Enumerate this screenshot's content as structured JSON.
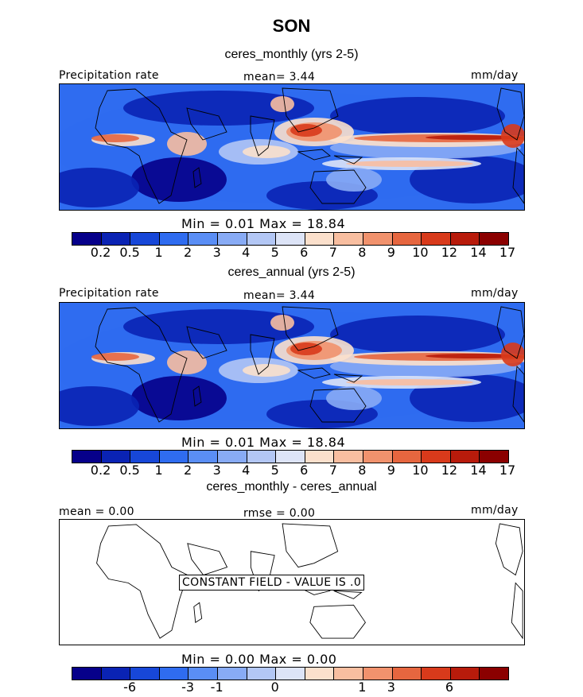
{
  "title": "SON",
  "colors": [
    "#06008a",
    "#0a23b4",
    "#1747d8",
    "#2f6cf0",
    "#5a8ef5",
    "#88abf5",
    "#b3c7f5",
    "#dde4f7",
    "#fbe0cc",
    "#f8bea0",
    "#f1926d",
    "#e6663f",
    "#d83a1b",
    "#b81b0b",
    "#8b0000"
  ],
  "land_color": "#1f3fd0",
  "panels": [
    {
      "subtitle": "ceres_monthly (yrs 2-5)",
      "left_label": "Precipitation rate",
      "center_label": "mean=   3.44",
      "right_label": "mm/day",
      "stats": "Min =    0.01  Max =   18.84",
      "ticks": [
        "0.2",
        "0.5",
        "1",
        "2",
        "3",
        "4",
        "5",
        "6",
        "7",
        "8",
        "9",
        "10",
        "12",
        "14",
        "17"
      ],
      "chart_data": {
        "type": "heatmap",
        "field": "Precipitation rate",
        "units": "mm/day",
        "mean": 3.44,
        "min": 0.01,
        "max": 18.84,
        "levels": [
          0.2,
          0.5,
          1,
          2,
          3,
          4,
          5,
          6,
          7,
          8,
          9,
          10,
          12,
          14,
          17
        ]
      }
    },
    {
      "subtitle": "ceres_annual (yrs 2-5)",
      "left_label": "Precipitation rate",
      "center_label": "mean=   3.44",
      "right_label": "mm/day",
      "stats": "Min =    0.01  Max =   18.84",
      "ticks": [
        "0.2",
        "0.5",
        "1",
        "2",
        "3",
        "4",
        "5",
        "6",
        "7",
        "8",
        "9",
        "10",
        "12",
        "14",
        "17"
      ],
      "chart_data": {
        "type": "heatmap",
        "field": "Precipitation rate",
        "units": "mm/day",
        "mean": 3.44,
        "min": 0.01,
        "max": 18.84,
        "levels": [
          0.2,
          0.5,
          1,
          2,
          3,
          4,
          5,
          6,
          7,
          8,
          9,
          10,
          12,
          14,
          17
        ]
      }
    },
    {
      "subtitle": "ceres_monthly - ceres_annual",
      "left_label": "mean =    0.00",
      "center_label": "rmse =    0.00",
      "right_label": "mm/day",
      "stats": "Min =    0.00  Max =    0.00",
      "note": "CONSTANT FIELD - VALUE IS .0",
      "ticks": [
        "-6",
        "-3",
        "-1",
        "0",
        "1",
        "3",
        "6"
      ],
      "chart_data": {
        "type": "heatmap",
        "field": "difference",
        "units": "mm/day",
        "mean": 0.0,
        "rmse": 0.0,
        "min": 0.0,
        "max": 0.0,
        "constant_value": 0.0
      }
    }
  ]
}
